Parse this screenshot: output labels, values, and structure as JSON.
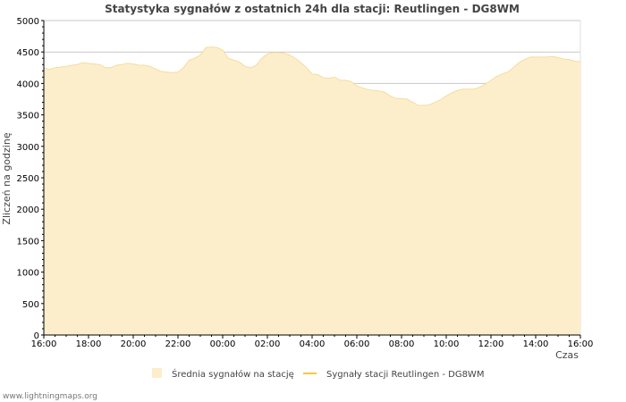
{
  "chart_data": {
    "type": "area",
    "title": "Statystyka sygnałów z ostatnich 24h dla stacji: Reutlingen - DG8WM",
    "xlabel": "Czas",
    "ylabel": "Zliczeń na godzinę",
    "ylim": [
      0,
      5000
    ],
    "yticks": [
      0,
      500,
      1000,
      1500,
      2000,
      2500,
      3000,
      3500,
      4000,
      4500,
      5000
    ],
    "ytick_labels": [
      "0",
      "500",
      "1000",
      "1500",
      "2000",
      "2500",
      "3000",
      "3500",
      "4000",
      "4500",
      "5000"
    ],
    "xlim": [
      0,
      24
    ],
    "xticks": [
      0,
      2,
      4,
      6,
      8,
      10,
      12,
      14,
      16,
      18,
      20,
      22,
      24
    ],
    "xtick_labels": [
      "16:00",
      "18:00",
      "20:00",
      "22:00",
      "00:00",
      "02:00",
      "04:00",
      "06:00",
      "08:00",
      "10:00",
      "12:00",
      "14:00",
      "16:00"
    ],
    "grid": true,
    "colors": {
      "area_fill": "#fdeecb",
      "area_edge": "#f5dba0",
      "station_line": "#f5c842",
      "grid": "#c8c8c8",
      "axis": "#000000"
    },
    "series": [
      {
        "name": "Średnia sygnałów na stację",
        "kind": "area",
        "x": [
          0,
          0.25,
          0.5,
          0.75,
          1,
          1.25,
          1.5,
          1.75,
          2,
          2.25,
          2.5,
          2.75,
          3,
          3.25,
          3.5,
          3.75,
          4,
          4.25,
          4.5,
          4.75,
          5,
          5.25,
          5.5,
          5.75,
          6,
          6.25,
          6.5,
          6.75,
          7,
          7.25,
          7.5,
          7.75,
          8,
          8.25,
          8.5,
          8.75,
          9,
          9.25,
          9.5,
          9.75,
          10,
          10.25,
          10.5,
          10.75,
          11,
          11.25,
          11.5,
          11.75,
          12,
          12.25,
          12.5,
          12.75,
          13,
          13.25,
          13.5,
          13.75,
          14,
          14.25,
          14.5,
          14.75,
          15,
          15.25,
          15.5,
          15.75,
          16,
          16.25,
          16.5,
          16.75,
          17,
          17.25,
          17.5,
          17.75,
          18,
          18.25,
          18.5,
          18.75,
          19,
          19.25,
          19.5,
          19.75,
          20,
          20.25,
          20.5,
          20.75,
          21,
          21.25,
          21.5,
          21.75,
          22,
          22.25,
          22.5,
          22.75,
          23,
          23.25,
          23.5,
          23.75,
          24
        ],
        "values": [
          4250,
          4220,
          4250,
          4260,
          4270,
          4290,
          4300,
          4330,
          4320,
          4310,
          4300,
          4250,
          4250,
          4290,
          4300,
          4320,
          4310,
          4290,
          4290,
          4270,
          4230,
          4190,
          4180,
          4170,
          4180,
          4250,
          4370,
          4400,
          4450,
          4570,
          4580,
          4570,
          4530,
          4400,
          4370,
          4340,
          4270,
          4250,
          4290,
          4400,
          4470,
          4490,
          4490,
          4480,
          4450,
          4400,
          4330,
          4250,
          4150,
          4140,
          4090,
          4080,
          4100,
          4050,
          4050,
          4030,
          3960,
          3930,
          3900,
          3890,
          3880,
          3860,
          3800,
          3760,
          3760,
          3750,
          3700,
          3650,
          3650,
          3660,
          3700,
          3740,
          3800,
          3850,
          3890,
          3910,
          3910,
          3910,
          3940,
          3990,
          4050,
          4110,
          4150,
          4180,
          4250,
          4330,
          4380,
          4420,
          4420,
          4420,
          4420,
          4430,
          4410,
          4390,
          4380,
          4350,
          4350
        ]
      },
      {
        "name": "Sygnały stacji Reutlingen - DG8WM",
        "kind": "line",
        "x": [],
        "values": []
      }
    ],
    "legend": {
      "position": "bottom",
      "items": [
        "Średnia sygnałów na stację",
        "Sygnały stacji Reutlingen - DG8WM"
      ]
    }
  },
  "footer": {
    "credit": "www.lightningmaps.org"
  }
}
